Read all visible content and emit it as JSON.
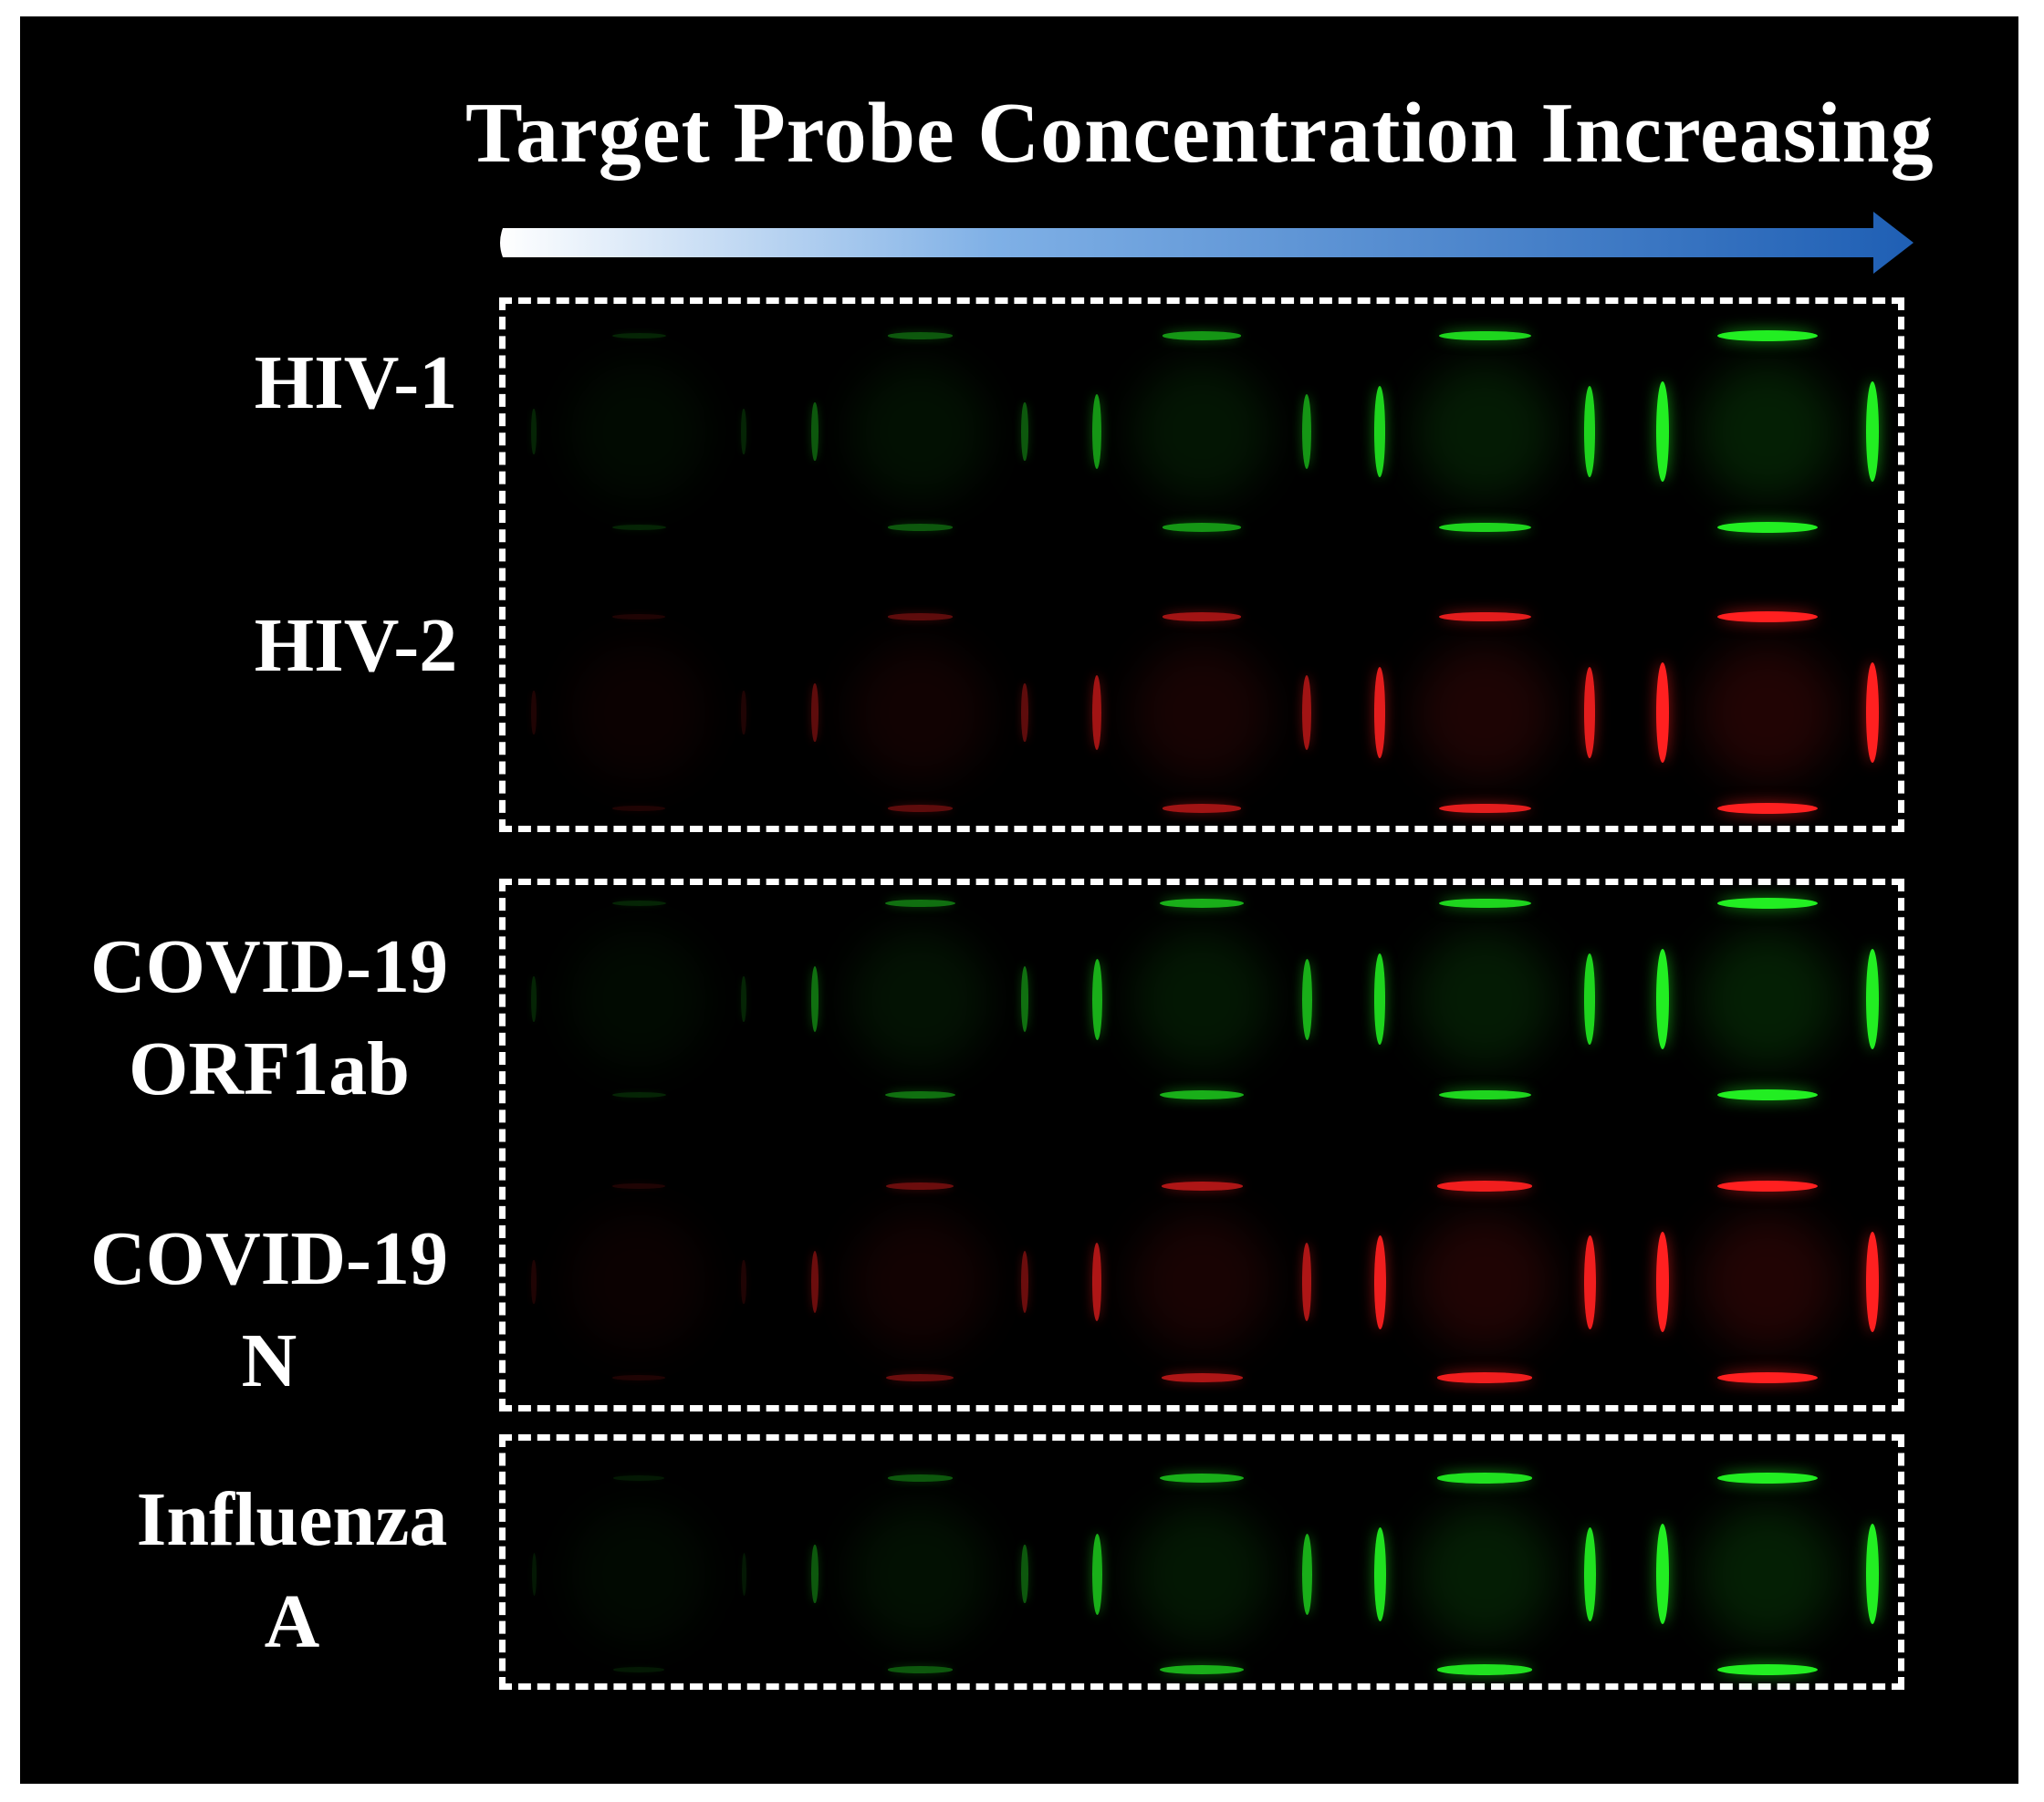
{
  "header": {
    "title": "Target Probe Concentration Increasing",
    "arrow_color": "#2f6fc0"
  },
  "rows": [
    {
      "id": "hiv1",
      "label_lines": [
        "HIV-1"
      ],
      "color": "#22ee22",
      "intensity": [
        0.15,
        0.35,
        0.6,
        0.85,
        1.0
      ]
    },
    {
      "id": "hiv2",
      "label_lines": [
        "HIV-2"
      ],
      "color": "#ff2020",
      "intensity": [
        0.12,
        0.35,
        0.6,
        0.85,
        1.0
      ]
    },
    {
      "id": "covid_orf1ab",
      "label_lines": [
        "COVID-19",
        "ORF1ab"
      ],
      "color": "#22ee22",
      "intensity": [
        0.15,
        0.45,
        0.7,
        0.85,
        1.0
      ]
    },
    {
      "id": "covid_n",
      "label_lines": [
        "COVID-19",
        "N"
      ],
      "color": "#ff2020",
      "intensity": [
        0.12,
        0.4,
        0.65,
        0.9,
        1.0
      ]
    },
    {
      "id": "influenza_a",
      "label_lines": [
        "Influenza",
        "A"
      ],
      "color": "#22ee22",
      "intensity": [
        0.1,
        0.35,
        0.7,
        0.9,
        1.0
      ]
    }
  ],
  "colors": {
    "background": "#000000",
    "frame": "#ffffff",
    "green_channel": "#22ee22",
    "red_channel": "#ff2020"
  }
}
